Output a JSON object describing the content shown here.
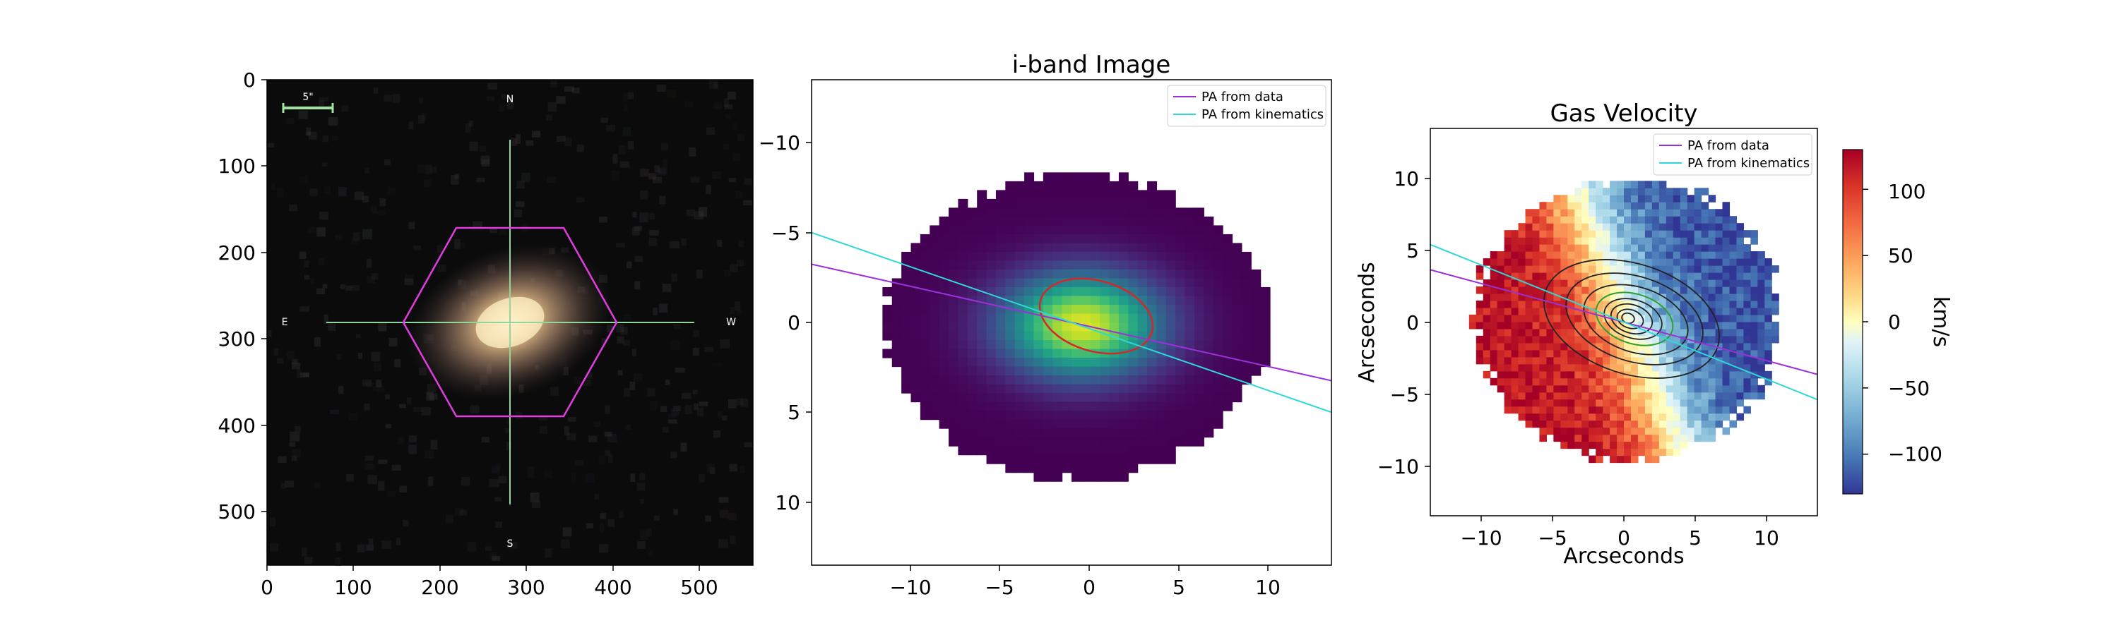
{
  "colors": {
    "pa_data": "#9b30d9",
    "pa_kinematics": "#2fd8d8",
    "hexagon": "#e23ce0",
    "crosshair": "#8fd79a",
    "scalebar": "#9fe39f",
    "contour_red": "#d62728",
    "contour_black": "#222222",
    "contour_green": "#2ca02c"
  },
  "chart_data": [
    {
      "type": "heatmap",
      "description_role": "galaxy optical image cutout",
      "x_ticks": [
        "0",
        "100",
        "200",
        "300",
        "400",
        "500"
      ],
      "y_ticks": [
        "0",
        "100",
        "200",
        "300",
        "400",
        "500"
      ],
      "xlim": [
        0,
        562
      ],
      "ylim": [
        562,
        0
      ],
      "scale_bar_label": "5\"",
      "compass": {
        "north": "N",
        "south": "S",
        "east": "E",
        "west": "W"
      },
      "galaxy_center": [
        281,
        281
      ]
    },
    {
      "type": "heatmap",
      "title": "i-band Image",
      "x_ticks": [
        "−10",
        "−5",
        "0",
        "5",
        "10"
      ],
      "y_ticks": [
        "−10",
        "−5",
        "0",
        "5",
        "10"
      ],
      "xlim": [
        -13.75,
        13.75
      ],
      "ylim": [
        -13.75,
        13.75
      ],
      "y_inverted": true,
      "legend": [
        "PA from data",
        "PA from kinematics"
      ],
      "legend_position": "top-right",
      "pa_data_slope": 0.24,
      "pa_kinematics_slope": 0.37
    },
    {
      "type": "heatmap",
      "title": "Gas Velocity",
      "xlabel": "Arcseconds",
      "ylabel": "Arcseconds",
      "x_ticks": [
        "−10",
        "−5",
        "0",
        "5",
        "10"
      ],
      "y_ticks": [
        "10",
        "5",
        "0",
        "−5",
        "−10"
      ],
      "xlim": [
        -13.75,
        13.75
      ],
      "ylim": [
        -13.75,
        13.75
      ],
      "legend": [
        "PA from data",
        "PA from kinematics"
      ],
      "legend_position": "top-right",
      "colorbar": {
        "label": "km/s",
        "ticks": [
          "100",
          "50",
          "0",
          "−50",
          "−100"
        ],
        "range": [
          -130,
          130
        ],
        "colormap": "RdYlBu_r"
      },
      "pa_data_slope": 0.27,
      "pa_kinematics_slope": 0.4
    }
  ]
}
